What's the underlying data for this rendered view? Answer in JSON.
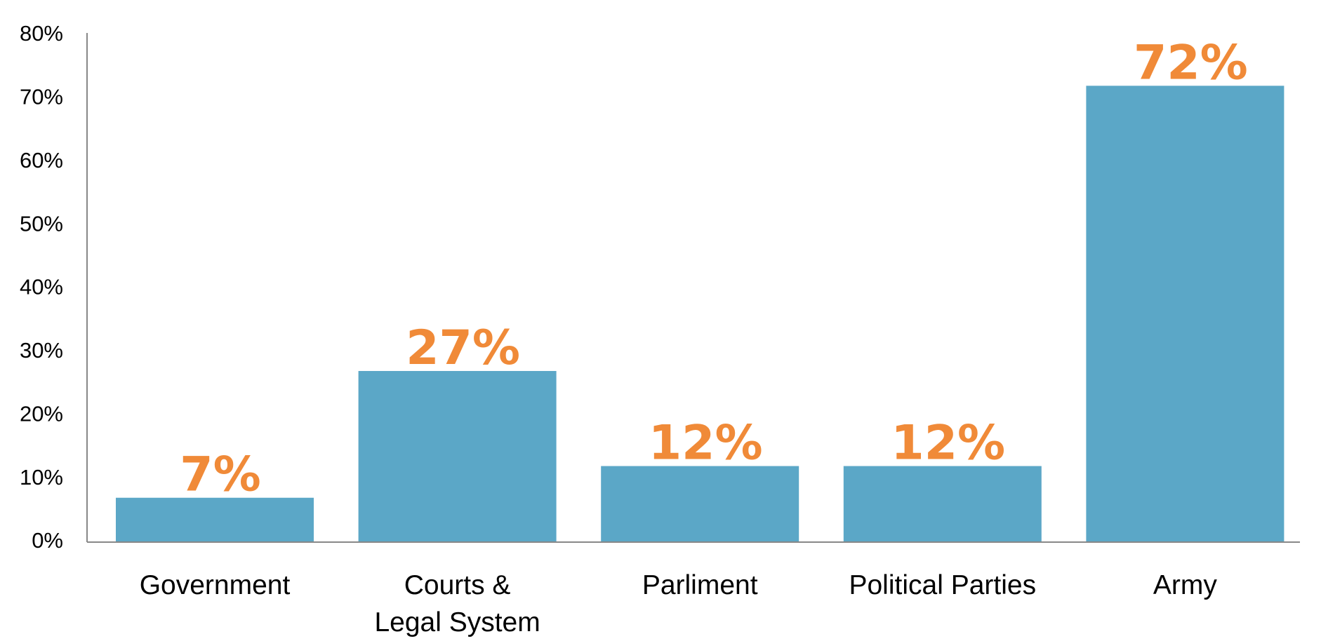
{
  "chart_data": {
    "type": "bar",
    "categories": [
      "Government",
      "Courts & Legal System",
      "Parliment",
      "Political Parties",
      "Army"
    ],
    "values": [
      7,
      27,
      12,
      12,
      72
    ],
    "value_labels": [
      "7%",
      "27%",
      "12%",
      "12%",
      "72%"
    ],
    "color": "#5ba7c7",
    "label_color": "#f08a38",
    "ylim": [
      0,
      80
    ],
    "yticks": [
      {
        "value": 0,
        "label": "0%"
      },
      {
        "value": 10,
        "label": "10%"
      },
      {
        "value": 20,
        "label": "20%"
      },
      {
        "value": 30,
        "label": "30%"
      },
      {
        "value": 40,
        "label": "40%"
      },
      {
        "value": 50,
        "label": "50%"
      },
      {
        "value": 60,
        "label": "60%"
      },
      {
        "value": 70,
        "label": "70%"
      },
      {
        "value": 80,
        "label": "80%"
      }
    ],
    "grid": false
  }
}
